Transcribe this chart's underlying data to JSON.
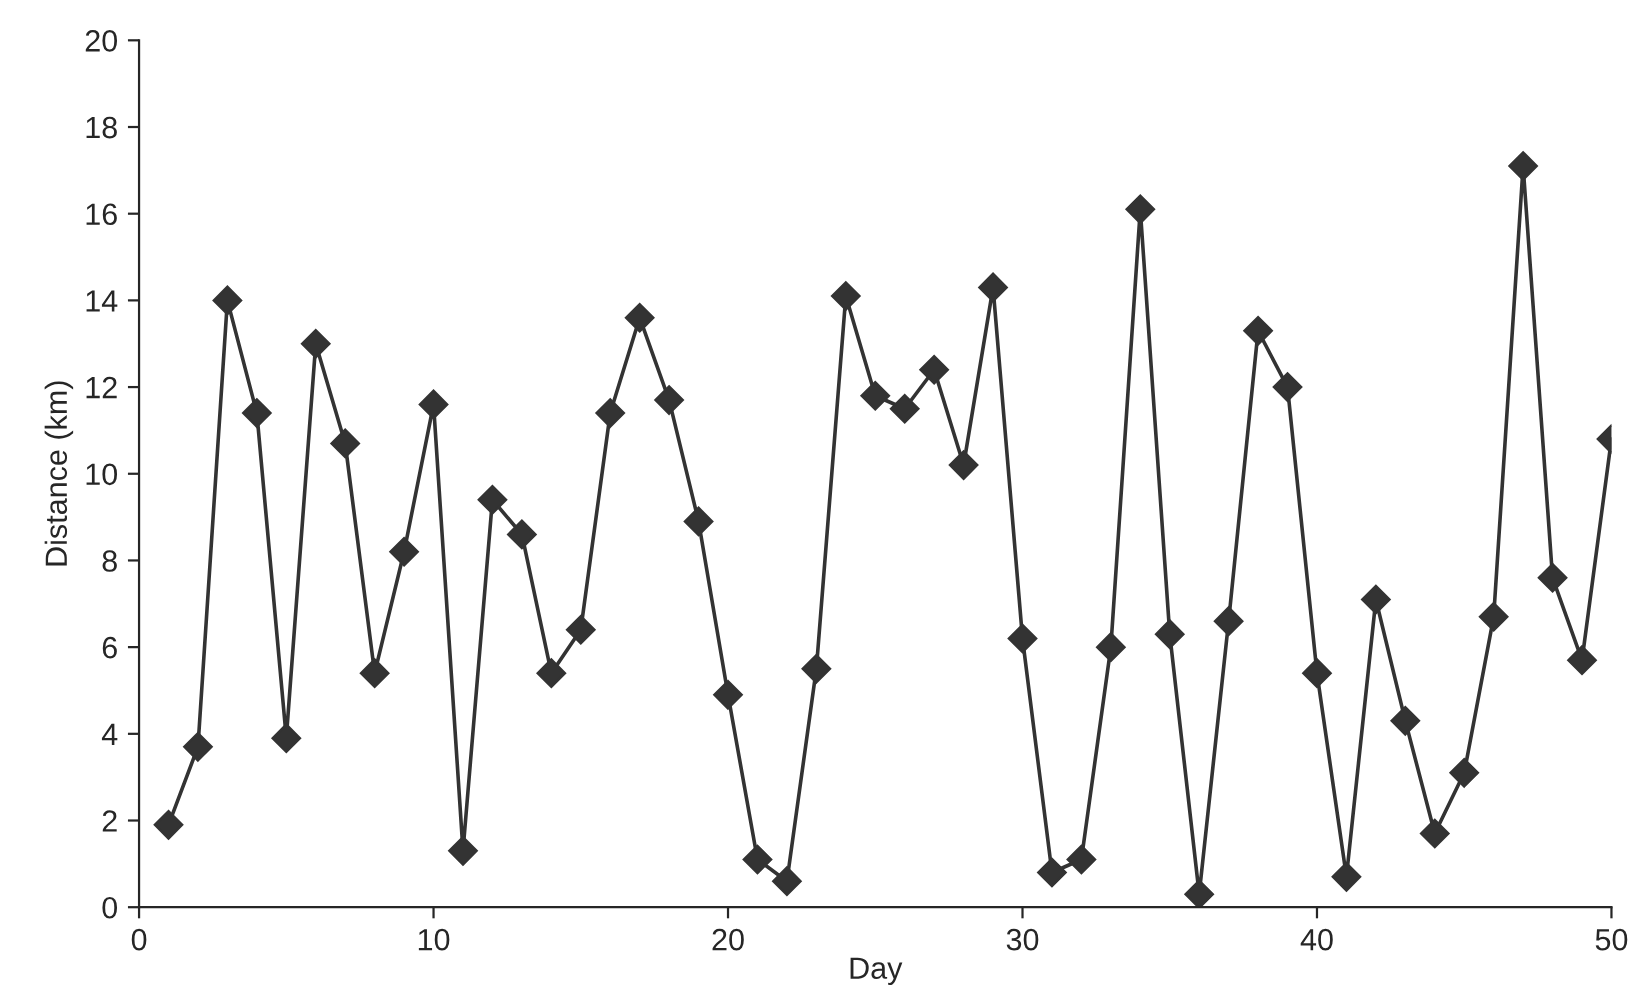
{
  "chart_data": {
    "type": "line",
    "xlabel": "Day",
    "ylabel": "Distance (km)",
    "x": [
      1,
      2,
      3,
      4,
      5,
      6,
      7,
      8,
      9,
      10,
      11,
      12,
      13,
      14,
      15,
      16,
      17,
      18,
      19,
      20,
      21,
      22,
      23,
      24,
      25,
      26,
      27,
      28,
      29,
      30,
      31,
      32,
      33,
      34,
      35,
      36,
      37,
      38,
      39,
      40,
      41,
      42,
      43,
      44,
      45,
      46,
      47,
      48,
      49,
      50
    ],
    "series": [
      {
        "color": "#333333",
        "values": [
          1.9,
          3.7,
          14.0,
          11.4,
          3.9,
          13.0,
          10.7,
          5.4,
          8.2,
          11.6,
          1.3,
          9.4,
          8.6,
          5.4,
          6.4,
          11.4,
          13.6,
          11.7,
          8.9,
          4.9,
          1.1,
          0.6,
          5.5,
          14.1,
          11.8,
          11.5,
          12.4,
          10.2,
          14.3,
          6.2,
          0.8,
          1.1,
          6.0,
          16.1,
          6.3,
          0.3,
          6.6,
          13.3,
          12.0,
          5.4,
          0.7,
          7.1,
          4.3,
          1.7,
          3.1,
          6.7,
          17.1,
          7.6,
          5.7,
          10.8
        ]
      }
    ],
    "xlim": [
      0,
      50
    ],
    "ylim": [
      0,
      20
    ],
    "xticks": [
      0,
      10,
      20,
      30,
      40,
      50
    ],
    "yticks": [
      0,
      2,
      4,
      6,
      8,
      10,
      12,
      14,
      16,
      18,
      20
    ],
    "marker": "diamond",
    "line_style": "solid",
    "grid": false,
    "legend": false
  }
}
